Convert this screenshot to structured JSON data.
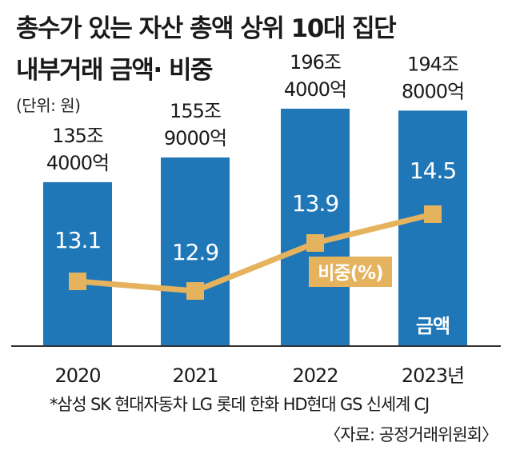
{
  "title_lines": [
    "총수가 있는 자산 총액 상위 10대 집단",
    "내부거래 금액· 비중"
  ],
  "unit": "(단위: 원)",
  "footnote": "*삼성 SK 현대자동차 LG 롯데 한화 HD현대 GS 신세계 CJ",
  "source": "〈자료: 공정거래위원회〉",
  "colors": {
    "bar": "#1f77b8",
    "line": "#e5b35e",
    "text": "#1a1a1a"
  },
  "chart_data": {
    "type": "bar+line",
    "categories": [
      "2020",
      "2021",
      "2022",
      "2023년"
    ],
    "series": [
      {
        "name": "금액",
        "kind": "bar",
        "values": [
          1354000,
          1559000,
          1964000,
          1948000
        ],
        "unit": "억원",
        "value_labels": [
          [
            "135조",
            "4000억"
          ],
          [
            "155조",
            "9000억"
          ],
          [
            "196조",
            "4000억"
          ],
          [
            "194조",
            "8000억"
          ]
        ]
      },
      {
        "name": "비중(%)",
        "kind": "line",
        "values": [
          13.1,
          12.9,
          13.9,
          14.5
        ],
        "value_labels": [
          "13.1",
          "12.9",
          "13.9",
          "14.5"
        ]
      }
    ]
  }
}
